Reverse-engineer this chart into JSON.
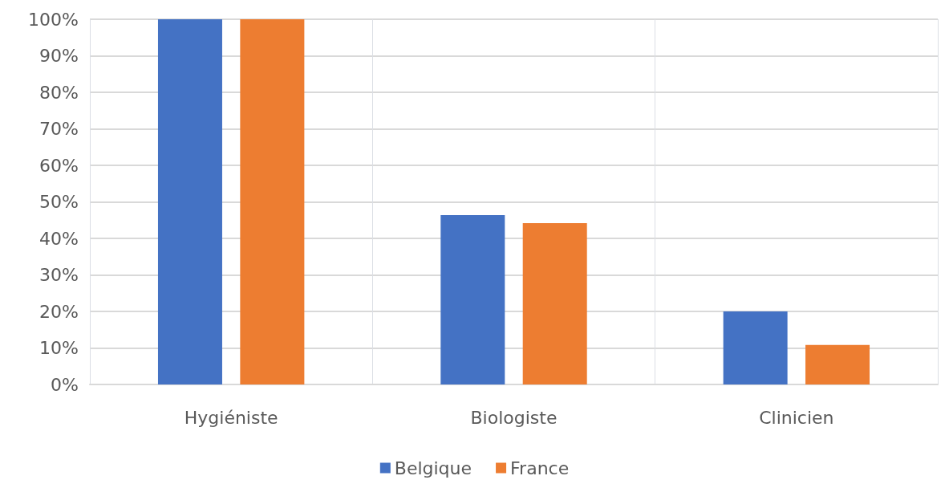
{
  "chart_data": {
    "type": "bar",
    "categories": [
      "Hygiéniste",
      "Biologiste",
      "Clinicien"
    ],
    "series": [
      {
        "name": "Belgique",
        "color": "#4472c4",
        "values": [
          100,
          46.4,
          20
        ]
      },
      {
        "name": "France",
        "color": "#ed7d31",
        "values": [
          100,
          44.2,
          10.8
        ]
      }
    ],
    "ylim": [
      0,
      100
    ],
    "yticks": [
      {
        "value": 0,
        "label": "0%"
      },
      {
        "value": 10,
        "label": "10%"
      },
      {
        "value": 20,
        "label": "20%"
      },
      {
        "value": 30,
        "label": "30%"
      },
      {
        "value": 40,
        "label": "40%"
      },
      {
        "value": 50,
        "label": "50%"
      },
      {
        "value": 60,
        "label": "60%"
      },
      {
        "value": 70,
        "label": "70%"
      },
      {
        "value": 80,
        "label": "80%"
      },
      {
        "value": 90,
        "label": "90%"
      },
      {
        "value": 100,
        "label": "100%"
      }
    ],
    "grid": true,
    "legend": "bottom"
  }
}
